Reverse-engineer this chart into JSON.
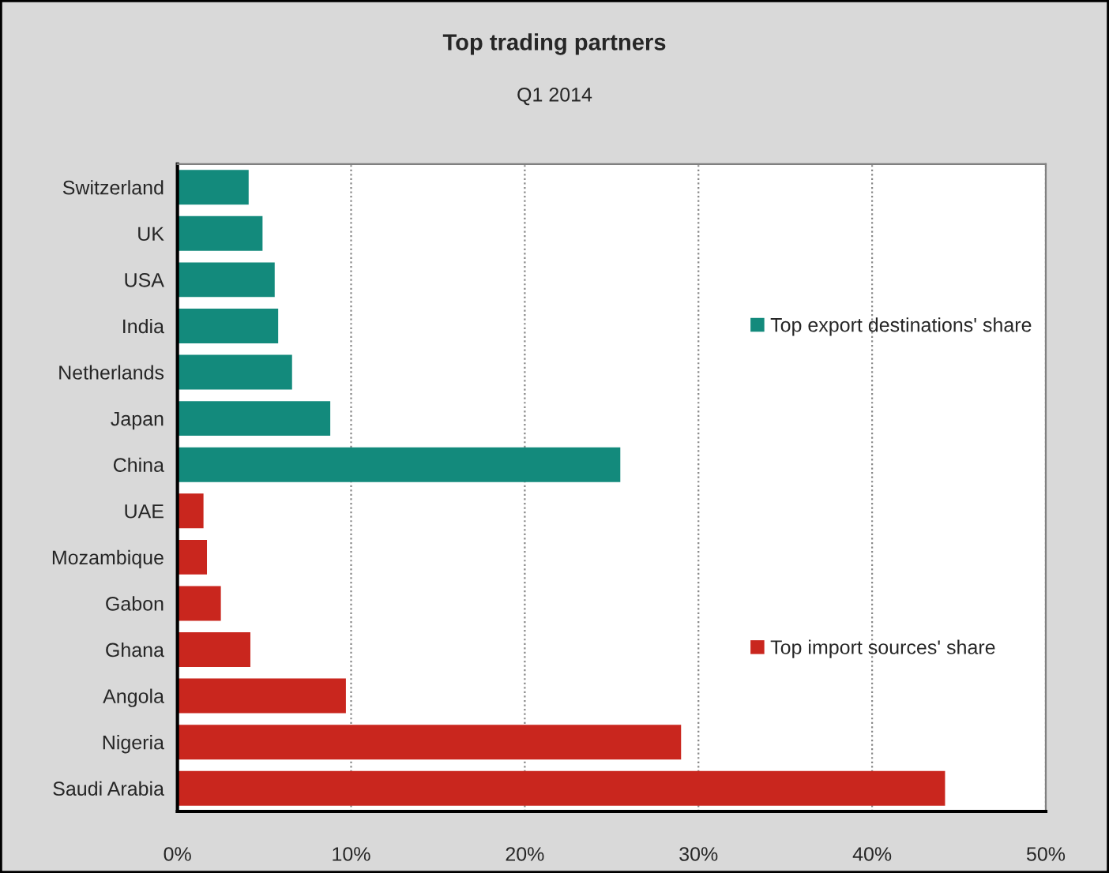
{
  "chart_data": {
    "type": "bar",
    "orientation": "horizontal",
    "title": "Top trading partners",
    "subtitle": "Q1 2014",
    "categories": [
      "Switzerland",
      "UK",
      "USA",
      "India",
      "Netherlands",
      "Japan",
      "China",
      "UAE",
      "Mozambique",
      "Gabon",
      "Ghana",
      "Angola",
      "Nigeria",
      "Saudi Arabia"
    ],
    "series": [
      {
        "name": "Top export destinations' share",
        "color": "#138a7c",
        "values": [
          4.1,
          4.9,
          5.6,
          5.8,
          6.6,
          8.8,
          25.5,
          null,
          null,
          null,
          null,
          null,
          null,
          null
        ]
      },
      {
        "name": "Top import sources' share",
        "color": "#c9261e",
        "values": [
          null,
          null,
          null,
          null,
          null,
          null,
          null,
          1.5,
          1.7,
          2.5,
          4.2,
          9.7,
          29.0,
          44.2
        ]
      }
    ],
    "xlim": [
      0,
      50
    ],
    "xticks": [
      {
        "value": 0,
        "label": "0%"
      },
      {
        "value": 10,
        "label": "10%"
      },
      {
        "value": 20,
        "label": "20%"
      },
      {
        "value": 30,
        "label": "30%"
      },
      {
        "value": 40,
        "label": "40%"
      },
      {
        "value": 50,
        "label": "50%"
      }
    ],
    "grid": "x",
    "legend": "right"
  }
}
